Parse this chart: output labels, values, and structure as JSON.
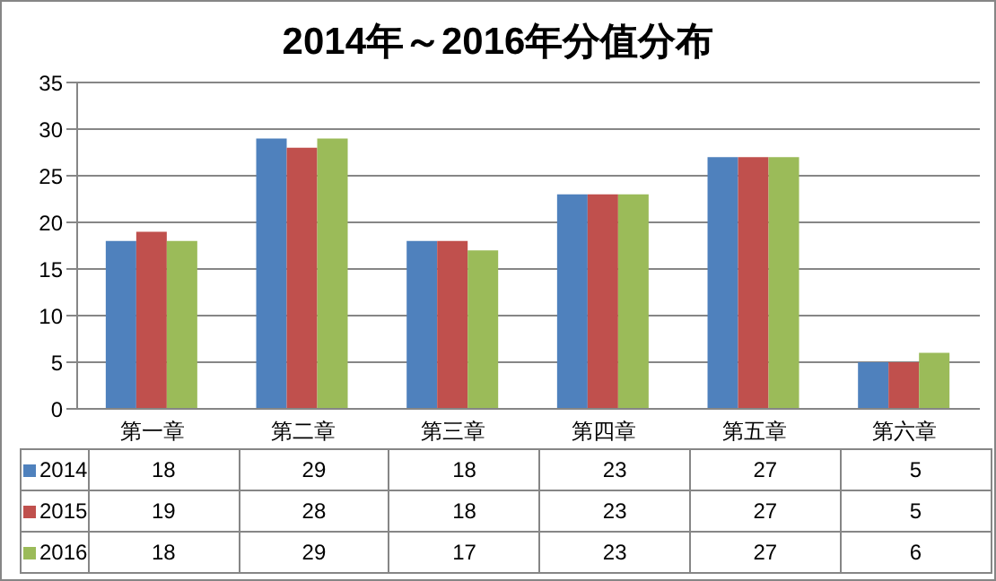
{
  "chart_data": {
    "type": "bar",
    "title": "2014年～2016年分值分布",
    "categories": [
      "第一章",
      "第二章",
      "第三章",
      "第四章",
      "第五章",
      "第六章"
    ],
    "series": [
      {
        "name": "2014",
        "color": "#4f81bd",
        "values": [
          18,
          29,
          18,
          23,
          27,
          5
        ]
      },
      {
        "name": "2015",
        "color": "#c0504d",
        "values": [
          19,
          28,
          18,
          23,
          27,
          5
        ]
      },
      {
        "name": "2016",
        "color": "#9bbb59",
        "values": [
          18,
          29,
          17,
          23,
          27,
          6
        ]
      }
    ],
    "ylim": [
      0,
      35
    ],
    "yticks": [
      0,
      5,
      10,
      15,
      20,
      25,
      30,
      35
    ],
    "grid": "y",
    "legend": "bottom",
    "data_labels": true
  }
}
